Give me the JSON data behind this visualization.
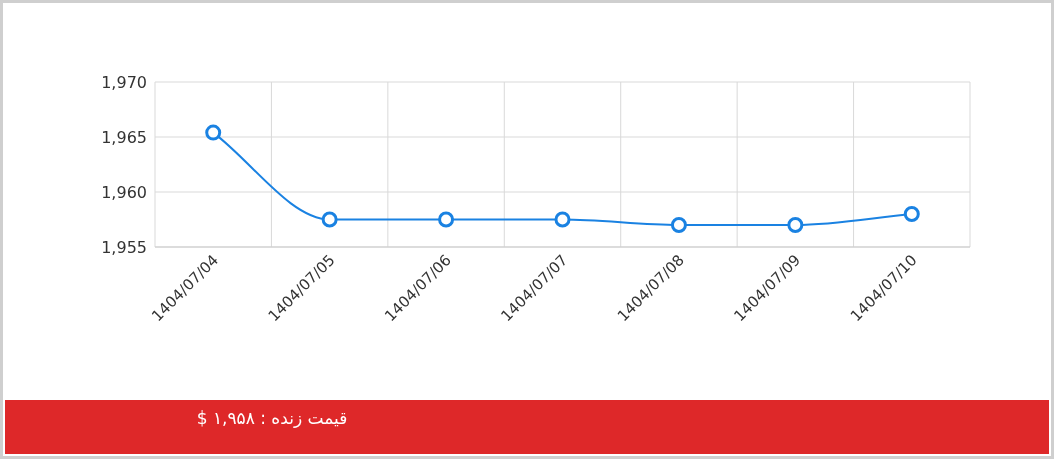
{
  "chart_data": {
    "type": "line",
    "categories": [
      "1404/07/04",
      "1404/07/05",
      "1404/07/06",
      "1404/07/07",
      "1404/07/08",
      "1404/07/09",
      "1404/07/10"
    ],
    "values": [
      1965.4,
      1957.5,
      1957.5,
      1957.5,
      1957,
      1957,
      1958
    ],
    "color": "#1a82e2",
    "ylim": [
      1955,
      1970
    ],
    "yticks": [
      {
        "value": 1955,
        "label": "1,955"
      },
      {
        "value": 1960,
        "label": "1,960"
      },
      {
        "value": 1965,
        "label": "1,965"
      },
      {
        "value": 1970,
        "label": "1,970"
      }
    ],
    "grid": true,
    "marker": "circle",
    "line_style": "solid",
    "annotations": [
      "قیمت زنده : ۱,۹۵۸ $"
    ]
  }
}
